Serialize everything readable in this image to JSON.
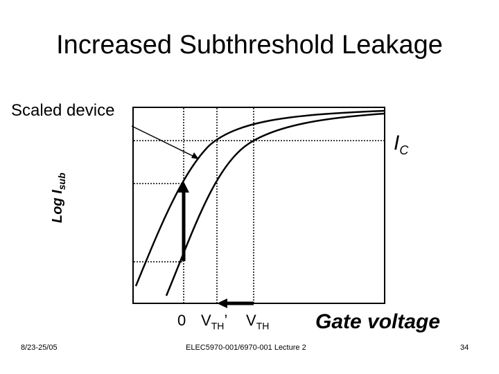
{
  "title": "Increased Subthreshold Leakage",
  "callout": "Scaled device",
  "ic_label": {
    "main": "I",
    "sub": "C"
  },
  "ylabel": {
    "main": "Log I",
    "sub": "sub"
  },
  "ticks": {
    "zero": "0",
    "vth_scaled": {
      "main": "V",
      "sub": "TH",
      "suffix": "’"
    },
    "vth": {
      "main": "V",
      "sub": "TH"
    }
  },
  "xlabel": "Gate voltage",
  "footer": {
    "date": "8/23-25/05",
    "course": "ELEC5970-001/6970-001 Lecture 2",
    "page": "34"
  }
}
